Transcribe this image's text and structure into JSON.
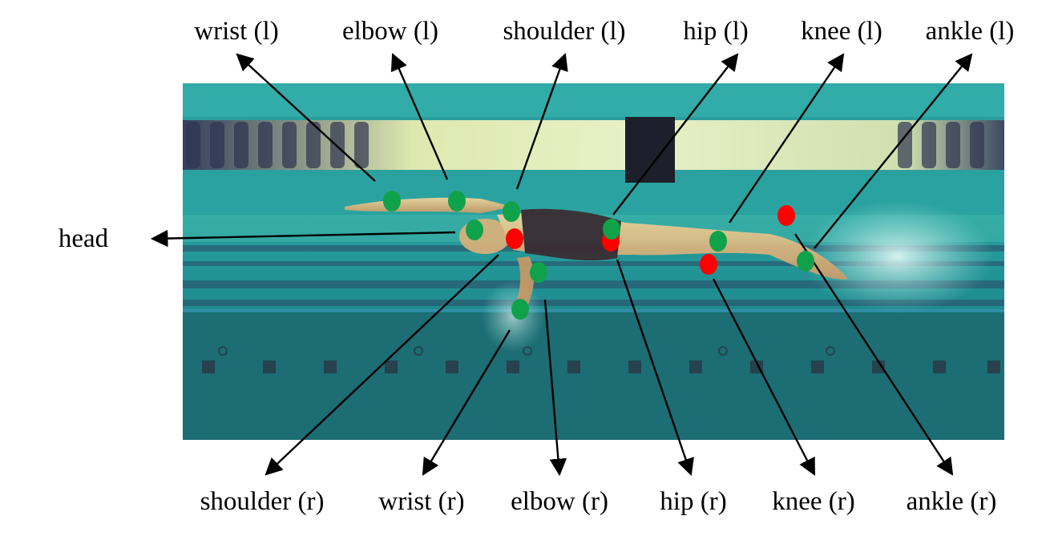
{
  "labels": {
    "wrist_l": "wrist (l)",
    "elbow_l": "elbow (l)",
    "shoulder_l": "shoulder (l)",
    "hip_l": "hip (l)",
    "knee_l": "knee (l)",
    "ankle_l": "ankle (l)",
    "head": "head",
    "shoulder_r": "shoulder (r)",
    "wrist_r": "wrist (r)",
    "elbow_r": "elbow (r)",
    "hip_r": "hip (r)",
    "knee_r": "knee (r)",
    "ankle_r": "ankle (r)"
  },
  "colors": {
    "visible_keypoint": "#10a24a",
    "occluded_keypoint": "#ff0000",
    "pool_water": "#1f8e92",
    "pool_floor": "#1e7076"
  }
}
